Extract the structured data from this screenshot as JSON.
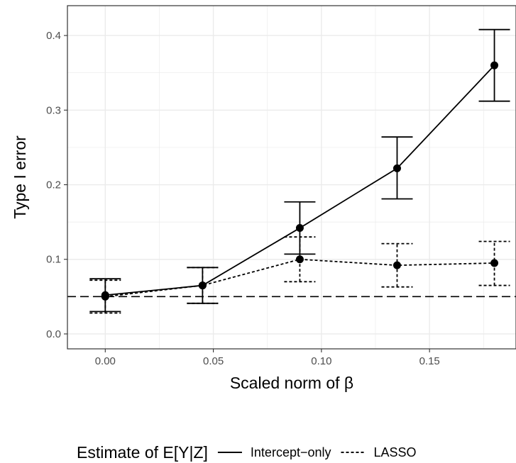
{
  "chart_data": {
    "type": "line",
    "xlabel": "Scaled norm of β",
    "ylabel": "Type I error",
    "xlim": [
      -0.0175,
      0.19
    ],
    "ylim": [
      -0.02,
      0.44
    ],
    "x_ticks": [
      0.0,
      0.05,
      0.1,
      0.15
    ],
    "x_tick_labels": [
      "0.00",
      "0.05",
      "0.10",
      "0.15"
    ],
    "y_ticks": [
      0.0,
      0.1,
      0.2,
      0.3,
      0.4
    ],
    "y_tick_labels": [
      "0.0",
      "0.1",
      "0.2",
      "0.3",
      "0.4"
    ],
    "grid": true,
    "reference_line": {
      "y": 0.05,
      "style": "dashed"
    },
    "legend": {
      "title": "Estimate of E[Y|Z]",
      "placement": "bottom"
    },
    "series": [
      {
        "name": "Intercept−only",
        "linetype": "solid",
        "x": [
          0.0,
          0.045,
          0.09,
          0.135,
          0.18
        ],
        "y": [
          0.052,
          0.065,
          0.142,
          0.222,
          0.36
        ],
        "lower": [
          0.03,
          0.041,
          0.107,
          0.181,
          0.312
        ],
        "upper": [
          0.074,
          0.089,
          0.177,
          0.264,
          0.408
        ]
      },
      {
        "name": "LASSO",
        "linetype": "dotted",
        "x": [
          0.0,
          0.045,
          0.09,
          0.135,
          0.18
        ],
        "y": [
          0.05,
          0.065,
          0.1,
          0.092,
          0.095
        ],
        "lower": [
          0.028,
          0.041,
          0.07,
          0.063,
          0.065
        ],
        "upper": [
          0.072,
          0.089,
          0.13,
          0.121,
          0.124
        ]
      }
    ]
  }
}
